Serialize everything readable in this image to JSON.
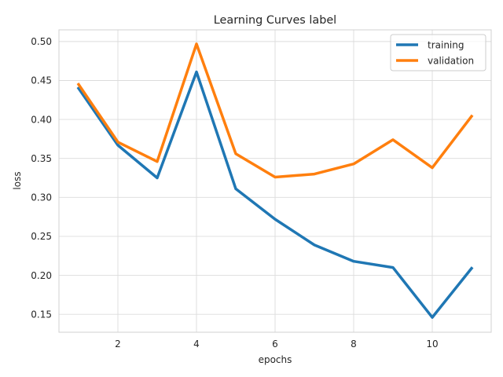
{
  "chart_data": {
    "type": "line",
    "title": "Learning Curves label",
    "xlabel": "epochs",
    "ylabel": "loss",
    "x": [
      1,
      2,
      3,
      4,
      5,
      6,
      7,
      8,
      9,
      10,
      11
    ],
    "series": [
      {
        "name": "training",
        "color": "#1f77b4",
        "values": [
          0.44,
          0.367,
          0.325,
          0.461,
          0.311,
          0.272,
          0.239,
          0.218,
          0.21,
          0.146,
          0.209
        ]
      },
      {
        "name": "validation",
        "color": "#ff7f0e",
        "values": [
          0.445,
          0.371,
          0.346,
          0.497,
          0.356,
          0.326,
          0.33,
          0.343,
          0.374,
          0.338,
          0.404
        ]
      }
    ],
    "xlim": [
      0.5,
      11.5
    ],
    "ylim": [
      0.127,
      0.515
    ],
    "xticks": [
      2,
      4,
      6,
      8,
      10
    ],
    "xtick_labels": [
      "2",
      "4",
      "6",
      "8",
      "10"
    ],
    "yticks": [
      0.15,
      0.2,
      0.25,
      0.3,
      0.35,
      0.4,
      0.45,
      0.5
    ],
    "ytick_labels": [
      "0.15",
      "0.20",
      "0.25",
      "0.30",
      "0.35",
      "0.40",
      "0.45",
      "0.50"
    ],
    "grid": true,
    "legend_position": "upper right"
  }
}
